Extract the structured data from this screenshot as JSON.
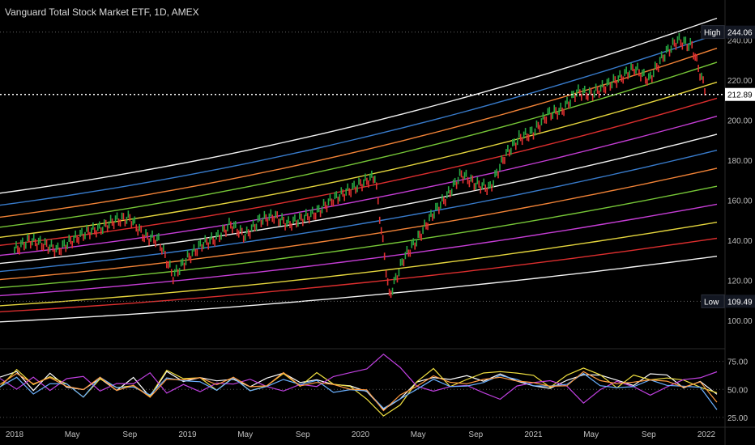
{
  "chart_data": [
    {
      "type": "line",
      "title": "Vanguard Total Stock Market ETF, 1D, AMEX",
      "x_ticks": [
        "2018",
        "May",
        "Sep",
        "2019",
        "May",
        "Sep",
        "2020",
        "May",
        "Sep",
        "2021",
        "May",
        "Sep",
        "2022"
      ],
      "x_range": [
        "2018-01",
        "2022-01"
      ],
      "y_ticks": [
        100,
        120,
        140,
        160,
        180,
        200,
        220,
        240
      ],
      "ylim": [
        87,
        252
      ],
      "markers": [
        {
          "label": "High",
          "value": "244.06",
          "y": 244.06
        },
        {
          "label": "",
          "value": "212.89",
          "y": 212.89
        },
        {
          "label": "Low",
          "value": "109.49",
          "y": 109.49
        }
      ],
      "bands": {
        "description_values": "regression channel lines",
        "colors": [
          "#ffffff",
          "#3b82d6",
          "#ff8a3a",
          "#7cd13a",
          "#f0e040",
          "#e83030",
          "#d040e0",
          "#ffffff",
          "#3b82d6",
          "#ff8a3a",
          "#7cd13a",
          "#d040e0",
          "#f0e040",
          "#e83030",
          "#ffffff"
        ],
        "start_values": [
          163,
          157,
          151,
          146,
          141,
          137,
          132,
          128,
          124,
          120,
          116,
          112,
          107,
          104,
          99
        ],
        "end_values": [
          251,
          243,
          236,
          229,
          219,
          211,
          202,
          193,
          185,
          176,
          167,
          158,
          149,
          141,
          132
        ]
      },
      "price_series": [
        {
          "x": "2018-01",
          "y": 135
        },
        {
          "x": "2018-02",
          "y": 140
        },
        {
          "x": "2018-03",
          "y": 138
        },
        {
          "x": "2018-04",
          "y": 135
        },
        {
          "x": "2018-05",
          "y": 140
        },
        {
          "x": "2018-06",
          "y": 144
        },
        {
          "x": "2018-07",
          "y": 146
        },
        {
          "x": "2018-08",
          "y": 150
        },
        {
          "x": "2018-09",
          "y": 151
        },
        {
          "x": "2018-10",
          "y": 142
        },
        {
          "x": "2018-11",
          "y": 140
        },
        {
          "x": "2018-12",
          "y": 122
        },
        {
          "x": "2019-01",
          "y": 131
        },
        {
          "x": "2019-02",
          "y": 138
        },
        {
          "x": "2019-03",
          "y": 141
        },
        {
          "x": "2019-04",
          "y": 148
        },
        {
          "x": "2019-05",
          "y": 142
        },
        {
          "x": "2019-06",
          "y": 150
        },
        {
          "x": "2019-07",
          "y": 152
        },
        {
          "x": "2019-08",
          "y": 148
        },
        {
          "x": "2019-09",
          "y": 151
        },
        {
          "x": "2019-10",
          "y": 154
        },
        {
          "x": "2019-11",
          "y": 160
        },
        {
          "x": "2019-12",
          "y": 164
        },
        {
          "x": "2020-01",
          "y": 168
        },
        {
          "x": "2020-02",
          "y": 172
        },
        {
          "x": "2020-03",
          "y": 112
        },
        {
          "x": "2020-04",
          "y": 131
        },
        {
          "x": "2020-05",
          "y": 141
        },
        {
          "x": "2020-06",
          "y": 153
        },
        {
          "x": "2020-07",
          "y": 162
        },
        {
          "x": "2020-08",
          "y": 173
        },
        {
          "x": "2020-09",
          "y": 168
        },
        {
          "x": "2020-10",
          "y": 166
        },
        {
          "x": "2020-11",
          "y": 182
        },
        {
          "x": "2020-12",
          "y": 191
        },
        {
          "x": "2021-01",
          "y": 194
        },
        {
          "x": "2021-02",
          "y": 203
        },
        {
          "x": "2021-03",
          "y": 205
        },
        {
          "x": "2021-04",
          "y": 214
        },
        {
          "x": "2021-05",
          "y": 213
        },
        {
          "x": "2021-06",
          "y": 217
        },
        {
          "x": "2021-07",
          "y": 221
        },
        {
          "x": "2021-08",
          "y": 226
        },
        {
          "x": "2021-09",
          "y": 220
        },
        {
          "x": "2021-10",
          "y": 232
        },
        {
          "x": "2021-11",
          "y": 240
        },
        {
          "x": "2021-12",
          "y": 237
        },
        {
          "x": "2022-01",
          "y": 213
        }
      ],
      "oscillator": {
        "y_ticks": [
          25,
          50,
          75
        ],
        "ylim": [
          22,
          82
        ],
        "series": [
          {
            "color": "#ffffff",
            "values": [
              58,
              66,
              50,
              62,
              55,
              48,
              60,
              52,
              58,
              45,
              64,
              57,
              60,
              55,
              62,
              50,
              58,
              63,
              57,
              60,
              52,
              54,
              48,
              30,
              42,
              55,
              63,
              57,
              60,
              58,
              64,
              60,
              56,
              52,
              58,
              66,
              60,
              58,
              56,
              62,
              60,
              54,
              58,
              48
            ]
          },
          {
            "color": "#f0e040",
            "values": [
              55,
              70,
              56,
              64,
              52,
              46,
              62,
              50,
              54,
              42,
              66,
              60,
              58,
              52,
              60,
              48,
              56,
              66,
              55,
              62,
              54,
              50,
              42,
              26,
              38,
              58,
              66,
              54,
              58,
              62,
              68,
              62,
              60,
              54,
              60,
              72,
              64,
              52,
              60,
              58,
              62,
              56,
              52,
              44
            ]
          },
          {
            "color": "#c040e0",
            "values": [
              62,
              48,
              58,
              52,
              60,
              64,
              50,
              58,
              52,
              62,
              48,
              54,
              50,
              58,
              52,
              60,
              55,
              48,
              54,
              50,
              60,
              62,
              66,
              80,
              70,
              50,
              46,
              54,
              52,
              48,
              44,
              50,
              54,
              58,
              52,
              40,
              48,
              60,
              52,
              46,
              52,
              58,
              62,
              64
            ]
          },
          {
            "color": "#6ab0ff",
            "values": [
              54,
              60,
              48,
              58,
              52,
              46,
              58,
              50,
              55,
              44,
              60,
              55,
              57,
              52,
              58,
              48,
              55,
              60,
              54,
              57,
              50,
              52,
              46,
              32,
              44,
              52,
              58,
              54,
              56,
              55,
              60,
              56,
              52,
              50,
              55,
              62,
              56,
              54,
              52,
              56,
              56,
              50,
              52,
              34
            ]
          },
          {
            "color": "#ff9a40",
            "values": [
              56,
              62,
              52,
              60,
              54,
              48,
              58,
              52,
              56,
              46,
              62,
              56,
              58,
              54,
              60,
              50,
              56,
              62,
              56,
              58,
              52,
              53,
              47,
              34,
              45,
              54,
              60,
              55,
              57,
              56,
              61,
              58,
              54,
              51,
              56,
              63,
              58,
              55,
              54,
              58,
              58,
              52,
              54,
              40
            ]
          }
        ]
      }
    }
  ]
}
